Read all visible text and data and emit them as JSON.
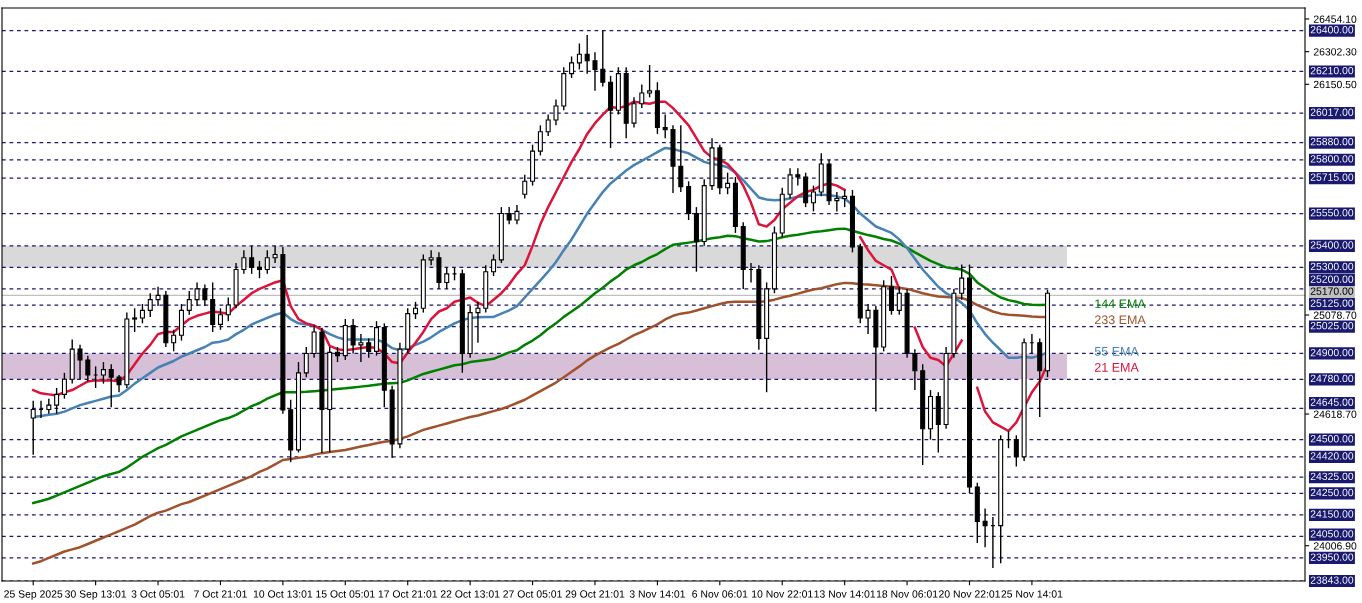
{
  "chart_data": {
    "type": "candlestick",
    "categories": [
      "25 Sep 2025",
      null,
      null,
      null,
      null,
      null,
      null,
      null,
      "30 Sep 13:01",
      null,
      null,
      null,
      null,
      null,
      null,
      null,
      "3 Oct 05:01",
      null,
      null,
      null,
      null,
      null,
      null,
      null,
      "7 Oct 21:01",
      null,
      null,
      null,
      null,
      null,
      null,
      null,
      "10 Oct 13:01",
      null,
      null,
      null,
      null,
      null,
      null,
      null,
      "15 Oct 05:01",
      null,
      null,
      null,
      null,
      null,
      null,
      null,
      "17 Oct 21:01",
      null,
      null,
      null,
      null,
      null,
      null,
      null,
      "22 Oct 13:01",
      null,
      null,
      null,
      null,
      null,
      null,
      null,
      "27 Oct 05:01",
      null,
      null,
      null,
      null,
      null,
      null,
      null,
      "29 Oct 21:01",
      null,
      null,
      null,
      null,
      null,
      null,
      null,
      "3 Nov 14:01",
      null,
      null,
      null,
      null,
      null,
      null,
      null,
      "6 Nov 06:01",
      null,
      null,
      null,
      null,
      null,
      null,
      null,
      "10 Nov 22:01",
      null,
      null,
      null,
      null,
      null,
      null,
      null,
      "13 Nov 14:01",
      null,
      null,
      null,
      null,
      null,
      null,
      null,
      "18 Nov 06:01",
      null,
      null,
      null,
      null,
      null,
      null,
      null,
      "20 Nov 22:01",
      null,
      null,
      null,
      null,
      null,
      null,
      null,
      "25 Nov 14:01",
      null,
      null
    ],
    "ylim": [
      23843,
      26505
    ],
    "yticks": [
      {
        "value": 26454.1,
        "label": "26454.10"
      },
      {
        "value": 26302.3,
        "label": "26302.30"
      },
      {
        "value": 26150.5,
        "label": "26150.50"
      },
      {
        "value": 25078.7,
        "label": "25078.70"
      },
      {
        "value": 24618.7,
        "label": "24618.70"
      },
      {
        "value": 24006.9,
        "label": "24006.90"
      }
    ],
    "grid": false,
    "bands": [
      {
        "axis": "y",
        "from": 25300,
        "to": 25400,
        "color": "#d9d9d9"
      },
      {
        "axis": "y",
        "from": 24780,
        "to": 24900,
        "color": "#d8bfd8"
      }
    ],
    "ref_lines": [
      {
        "axis": "y",
        "value": 26400,
        "label": "26400.00",
        "color": "#191970",
        "line_style": "dashed"
      },
      {
        "axis": "y",
        "value": 26210,
        "label": "26210.00",
        "color": "#191970",
        "line_style": "dashed"
      },
      {
        "axis": "y",
        "value": 26017,
        "label": "26017.00",
        "color": "#191970",
        "line_style": "dashed"
      },
      {
        "axis": "y",
        "value": 25880,
        "label": "25880.00",
        "color": "#191970",
        "line_style": "dashed"
      },
      {
        "axis": "y",
        "value": 25800,
        "label": "25800.00",
        "color": "#191970",
        "line_style": "dashed"
      },
      {
        "axis": "y",
        "value": 25715,
        "label": "25715.00",
        "color": "#191970",
        "line_style": "dashed"
      },
      {
        "axis": "y",
        "value": 25550,
        "label": "25550.00",
        "color": "#191970",
        "line_style": "dashed"
      },
      {
        "axis": "y",
        "value": 25400,
        "label": "25400.00",
        "color": "#191970",
        "line_style": "dashed"
      },
      {
        "axis": "y",
        "value": 25300,
        "label": "25300.00",
        "color": "#191970",
        "line_style": "dashed"
      },
      {
        "axis": "y",
        "value": 25200,
        "label": "25200.00",
        "color": "#191970",
        "line_style": "dashed"
      },
      {
        "axis": "y",
        "value": 25170,
        "label": "25170.00",
        "color": "#c0c0c0",
        "line_style": "solid"
      },
      {
        "axis": "y",
        "value": 25125,
        "label": "25125.00",
        "color": "#191970",
        "line_style": "dashed"
      },
      {
        "axis": "y",
        "value": 25025,
        "label": "25025.00",
        "color": "#191970",
        "line_style": "dashed"
      },
      {
        "axis": "y",
        "value": 24900,
        "label": "24900.00",
        "color": "#191970",
        "line_style": "dashed"
      },
      {
        "axis": "y",
        "value": 24780,
        "label": "24780.00",
        "color": "#191970",
        "line_style": "dashed"
      },
      {
        "axis": "y",
        "value": 24645,
        "label": "24645.00",
        "color": "#191970",
        "line_style": "dashed"
      },
      {
        "axis": "y",
        "value": 24500,
        "label": "24500.00",
        "color": "#191970",
        "line_style": "dashed"
      },
      {
        "axis": "y",
        "value": 24420,
        "label": "24420.00",
        "color": "#191970",
        "line_style": "dashed"
      },
      {
        "axis": "y",
        "value": 24325,
        "label": "24325.00",
        "color": "#191970",
        "line_style": "dashed"
      },
      {
        "axis": "y",
        "value": 24250,
        "label": "24250.00",
        "color": "#191970",
        "line_style": "dashed"
      },
      {
        "axis": "y",
        "value": 24150,
        "label": "24150.00",
        "color": "#191970",
        "line_style": "dashed"
      },
      {
        "axis": "y",
        "value": 24050,
        "label": "24050.00",
        "color": "#191970",
        "line_style": "dashed"
      },
      {
        "axis": "y",
        "value": 23950,
        "label": "23950.00",
        "color": "#191970",
        "line_style": "dashed"
      },
      {
        "axis": "y",
        "value": 23843,
        "label": "23843.00",
        "color": "#191970",
        "line_style": "dashed"
      }
    ],
    "ohlc": [
      [
        24600,
        24680,
        24430,
        24640
      ],
      [
        24640,
        24680,
        24600,
        24640
      ],
      [
        24640,
        24690,
        24620,
        24660
      ],
      [
        24660,
        24740,
        24620,
        24710
      ],
      [
        24710,
        24810,
        24690,
        24780
      ],
      [
        24780,
        24965,
        24760,
        24920
      ],
      [
        24920,
        24940,
        24780,
        24870
      ],
      [
        24870,
        24890,
        24770,
        24800
      ],
      [
        24800,
        24840,
        24740,
        24800
      ],
      [
        24800,
        24860,
        24760,
        24825
      ],
      [
        24825,
        24850,
        24650,
        24790
      ],
      [
        24790,
        24800,
        24720,
        24755
      ],
      [
        24755,
        25090,
        24740,
        25060
      ],
      [
        25060,
        25110,
        25000,
        25065
      ],
      [
        25065,
        25130,
        25040,
        25100
      ],
      [
        25100,
        25180,
        25070,
        25150
      ],
      [
        25150,
        25210,
        25120,
        25170
      ],
      [
        25170,
        25190,
        24930,
        24950
      ],
      [
        24950,
        25010,
        24910,
        24985
      ],
      [
        24985,
        25130,
        24960,
        25100
      ],
      [
        25100,
        25190,
        25080,
        25150
      ],
      [
        25150,
        25230,
        25120,
        25200
      ],
      [
        25200,
        25220,
        25120,
        25150
      ],
      [
        25150,
        25230,
        25000,
        25035
      ],
      [
        25035,
        25110,
        25010,
        25080
      ],
      [
        25080,
        25160,
        25050,
        25125
      ],
      [
        25125,
        25320,
        25110,
        25290
      ],
      [
        25290,
        25380,
        25270,
        25345
      ],
      [
        25345,
        25400,
        25270,
        25300
      ],
      [
        25300,
        25330,
        25250,
        25290
      ],
      [
        25290,
        25380,
        25270,
        25345
      ],
      [
        25345,
        25400,
        25320,
        25360
      ],
      [
        25360,
        25395,
        24620,
        24638
      ],
      [
        24638,
        24685,
        24395,
        24452
      ],
      [
        24452,
        24860,
        24440,
        24810
      ],
      [
        24810,
        24930,
        24790,
        24900
      ],
      [
        24900,
        25030,
        24880,
        25000
      ],
      [
        25000,
        25020,
        24438,
        24640
      ],
      [
        24640,
        24930,
        24440,
        24905
      ],
      [
        24905,
        24930,
        24860,
        24890
      ],
      [
        24890,
        25060,
        24870,
        25030
      ],
      [
        25030,
        25060,
        24900,
        24940
      ],
      [
        24940,
        24990,
        24860,
        24950
      ],
      [
        24950,
        24970,
        24880,
        24910
      ],
      [
        24910,
        25050,
        24890,
        25020
      ],
      [
        25020,
        25040,
        24650,
        24730
      ],
      [
        24730,
        24750,
        24415,
        24480
      ],
      [
        24480,
        24950,
        24460,
        24920
      ],
      [
        24920,
        25110,
        24900,
        25085
      ],
      [
        25085,
        25140,
        25060,
        25110
      ],
      [
        25110,
        25360,
        25090,
        25335
      ],
      [
        25335,
        25380,
        25310,
        25345
      ],
      [
        25345,
        25370,
        25200,
        25230
      ],
      [
        25230,
        25300,
        25200,
        25270
      ],
      [
        25270,
        25300,
        25240,
        25270
      ],
      [
        25270,
        25290,
        24810,
        24900
      ],
      [
        24900,
        25120,
        24880,
        25090
      ],
      [
        25090,
        25140,
        24950,
        25110
      ],
      [
        25110,
        25310,
        25090,
        25280
      ],
      [
        25280,
        25360,
        25260,
        25335
      ],
      [
        25335,
        25580,
        25320,
        25550
      ],
      [
        25550,
        25580,
        25500,
        25520
      ],
      [
        25520,
        25590,
        25500,
        25560
      ],
      [
        25640,
        25730,
        25620,
        25700
      ],
      [
        25700,
        25870,
        25680,
        25840
      ],
      [
        25840,
        25960,
        25820,
        25930
      ],
      [
        25930,
        26010,
        25910,
        25985
      ],
      [
        25985,
        26080,
        25960,
        26050
      ],
      [
        26050,
        26230,
        26030,
        26200
      ],
      [
        26200,
        26280,
        26180,
        26250
      ],
      [
        26250,
        26340,
        26220,
        26290
      ],
      [
        26290,
        26380,
        26200,
        26260
      ],
      [
        26260,
        26300,
        26120,
        26220
      ],
      [
        26220,
        26400,
        26140,
        26160
      ],
      [
        26160,
        26190,
        25855,
        26030
      ],
      [
        26030,
        26230,
        26010,
        26200
      ],
      [
        26200,
        26230,
        25900,
        25970
      ],
      [
        25970,
        26090,
        25950,
        26060
      ],
      [
        26060,
        26150,
        26040,
        26110
      ],
      [
        26110,
        26240,
        26090,
        26120
      ],
      [
        26120,
        26160,
        25920,
        25950
      ],
      [
        25950,
        26010,
        25900,
        25940
      ],
      [
        25940,
        25960,
        25645,
        25770
      ],
      [
        25770,
        25960,
        25650,
        25675
      ],
      [
        25675,
        25700,
        25520,
        25550
      ],
      [
        25550,
        25580,
        25280,
        25420
      ],
      [
        25420,
        25710,
        25400,
        25680
      ],
      [
        25680,
        25900,
        25660,
        25855
      ],
      [
        25855,
        25870,
        25640,
        25670
      ],
      [
        25670,
        25740,
        25640,
        25690
      ],
      [
        25690,
        25720,
        25460,
        25490
      ],
      [
        25490,
        25510,
        25200,
        25290
      ],
      [
        25290,
        25320,
        25230,
        25290
      ],
      [
        25290,
        25310,
        24917,
        24970
      ],
      [
        24970,
        25230,
        24720,
        25200
      ],
      [
        25200,
        25490,
        25180,
        25460
      ],
      [
        25460,
        25670,
        25440,
        25640
      ],
      [
        25640,
        25760,
        25620,
        25730
      ],
      [
        25730,
        25760,
        25680,
        25720
      ],
      [
        25720,
        25740,
        25580,
        25600
      ],
      [
        25600,
        25680,
        25560,
        25650
      ],
      [
        25650,
        25830,
        25630,
        25780
      ],
      [
        25780,
        25800,
        25590,
        25610
      ],
      [
        25610,
        25650,
        25560,
        25620
      ],
      [
        25620,
        25660,
        25580,
        25630
      ],
      [
        25630,
        25660,
        25370,
        25395
      ],
      [
        25395,
        25410,
        25040,
        25065
      ],
      [
        25065,
        25130,
        24990,
        25100
      ],
      [
        25100,
        25120,
        24630,
        24930
      ],
      [
        24930,
        25240,
        24910,
        25210
      ],
      [
        25210,
        25260,
        25080,
        25100
      ],
      [
        25100,
        25210,
        25080,
        25180
      ],
      [
        25180,
        25200,
        24880,
        24900
      ],
      [
        24900,
        24920,
        24730,
        24820
      ],
      [
        24820,
        24850,
        24382,
        24550
      ],
      [
        24550,
        24730,
        24500,
        24700
      ],
      [
        24700,
        24720,
        24440,
        24570
      ],
      [
        24570,
        24930,
        24550,
        24900
      ],
      [
        24900,
        25200,
        24880,
        25180
      ],
      [
        25180,
        25313,
        25150,
        25250
      ],
      [
        25250,
        25313,
        24250,
        24280
      ],
      [
        24280,
        24300,
        24020,
        24120
      ],
      [
        24120,
        24180,
        24000,
        24100
      ],
      [
        24100,
        24140,
        23903,
        24100
      ],
      [
        24100,
        24520,
        23925,
        24500
      ],
      [
        24500,
        24540,
        24460,
        24500
      ],
      [
        24500,
        24520,
        24375,
        24420
      ],
      [
        24420,
        24970,
        24400,
        24950
      ],
      [
        24950,
        24990,
        24900,
        24950
      ],
      [
        24950,
        24970,
        24605,
        24820
      ],
      [
        24820,
        25195,
        24790,
        25180
      ]
    ],
    "color": "#000000",
    "series": [
      {
        "type": "line",
        "name": "144 EMA",
        "color": "#008000",
        "values": [
          24205,
          24215,
          24225,
          24240,
          24255,
          24270,
          24285,
          24300,
          24315,
          24330,
          24340,
          24350,
          24370,
          24395,
          24420,
          24440,
          24460,
          24475,
          24495,
          24515,
          24530,
          24545,
          24560,
          24575,
          24590,
          24600,
          24615,
          24635,
          24655,
          24670,
          24690,
          24705,
          24720,
          24720,
          24720,
          24722,
          24725,
          24728,
          24732,
          24735,
          24738,
          24742,
          24746,
          24750,
          24755,
          24760,
          24762,
          24764,
          24775,
          24790,
          24805,
          24815,
          24825,
          24835,
          24845,
          24850,
          24860,
          24865,
          24870,
          24875,
          24890,
          24905,
          24915,
          24940,
          24960,
          24985,
          25015,
          25040,
          25070,
          25095,
          25120,
          25150,
          25180,
          25205,
          25235,
          25260,
          25290,
          25310,
          25325,
          25345,
          25362,
          25385,
          25405,
          25410,
          25415,
          25420,
          25428,
          25435,
          25440,
          25447,
          25445,
          25435,
          25428,
          25420,
          25422,
          25430,
          25440,
          25447,
          25452,
          25458,
          25464,
          25468,
          25473,
          25478,
          25480,
          25470,
          25460,
          25450,
          25442,
          25432,
          25425,
          25410,
          25392,
          25370,
          25350,
          25330,
          25315,
          25300,
          25295,
          25290,
          25270,
          25230,
          25205,
          25180,
          25160,
          25148,
          25140,
          25130,
          25126,
          25125,
          25126
        ]
      },
      {
        "type": "line",
        "name": "233 EMA",
        "color": "#a0522d",
        "values": [
          23925,
          23935,
          23950,
          23965,
          23980,
          23990,
          24000,
          24015,
          24030,
          24045,
          24060,
          24075,
          24090,
          24105,
          24125,
          24145,
          24160,
          24170,
          24185,
          24200,
          24210,
          24225,
          24240,
          24255,
          24270,
          24285,
          24300,
          24315,
          24330,
          24350,
          24365,
          24385,
          24405,
          24410,
          24415,
          24420,
          24430,
          24437,
          24442,
          24447,
          24452,
          24460,
          24468,
          24475,
          24483,
          24490,
          24495,
          24503,
          24515,
          24530,
          24545,
          24555,
          24565,
          24575,
          24585,
          24595,
          24605,
          24612,
          24622,
          24632,
          24642,
          24655,
          24670,
          24685,
          24705,
          24725,
          24745,
          24765,
          24790,
          24815,
          24840,
          24868,
          24890,
          24910,
          24928,
          24945,
          24965,
          24985,
          25000,
          25018,
          25035,
          25058,
          25075,
          25085,
          25090,
          25100,
          25110,
          25120,
          25130,
          25138,
          25140,
          25140,
          25140,
          25140,
          25143,
          25150,
          25160,
          25168,
          25178,
          25188,
          25197,
          25203,
          25212,
          25222,
          25228,
          25226,
          25222,
          25220,
          25217,
          25214,
          25210,
          25206,
          25200,
          25190,
          25180,
          25172,
          25165,
          25162,
          25160,
          25158,
          25145,
          25125,
          25110,
          25095,
          25085,
          25080,
          25078,
          25075,
          25072,
          25070,
          25070
        ]
      },
      {
        "type": "line",
        "name": "55 EMA",
        "color": "#4682b4",
        "values": [
          24605,
          24610,
          24615,
          24620,
          24630,
          24645,
          24660,
          24670,
          24680,
          24690,
          24700,
          24705,
          24730,
          24760,
          24785,
          24810,
          24835,
          24850,
          24865,
          24885,
          24900,
          24915,
          24930,
          24950,
          24955,
          24965,
          24990,
          25010,
          25035,
          25050,
          25065,
          25080,
          25090,
          25060,
          25040,
          25035,
          25030,
          25010,
          24990,
          24975,
          24965,
          24965,
          24965,
          24965,
          24965,
          24950,
          24925,
          24915,
          24925,
          24940,
          24955,
          24975,
          25000,
          25020,
          25040,
          25055,
          25065,
          25068,
          25070,
          25070,
          25085,
          25100,
          25120,
          25160,
          25200,
          25240,
          25280,
          25325,
          25380,
          25430,
          25490,
          25550,
          25600,
          25650,
          25690,
          25720,
          25750,
          25775,
          25795,
          25815,
          25835,
          25855,
          25850,
          25840,
          25830,
          25810,
          25790,
          25780,
          25775,
          25765,
          25740,
          25705,
          25665,
          25625,
          25615,
          25612,
          25614,
          25620,
          25628,
          25630,
          25635,
          25638,
          25635,
          25630,
          25620,
          25590,
          25550,
          25520,
          25490,
          25475,
          25460,
          25430,
          25390,
          25340,
          25290,
          25250,
          25210,
          25180,
          25160,
          25135,
          25100,
          25040,
          24990,
          24950,
          24915,
          24880,
          24880,
          24885,
          24880,
          24890,
          24905
        ]
      },
      {
        "type": "line",
        "name": "21 EMA",
        "color": "#dc143c",
        "values": [
          24730,
          24715,
          24710,
          24705,
          24720,
          24730,
          24750,
          24770,
          24775,
          24775,
          24775,
          24770,
          24800,
          24850,
          24900,
          24940,
          24990,
          25000,
          25000,
          25030,
          25060,
          25075,
          25085,
          25095,
          25090,
          25085,
          25120,
          25150,
          25180,
          25200,
          25215,
          25230,
          25240,
          25120,
          25060,
          25040,
          25030,
          25010,
          24935,
          24920,
          24915,
          24920,
          24925,
          24930,
          24925,
          24900,
          24860,
          24855,
          24905,
          24950,
          25000,
          25060,
          25095,
          25110,
          25140,
          25150,
          25160,
          25135,
          25120,
          25150,
          25180,
          25220,
          25270,
          25310,
          25400,
          25500,
          25580,
          25650,
          25720,
          25790,
          25850,
          25920,
          25970,
          26010,
          26045,
          26040,
          26050,
          26070,
          26065,
          26060,
          26070,
          26070,
          26040,
          26000,
          25960,
          25900,
          25840,
          25810,
          25800,
          25780,
          25740,
          25680,
          25600,
          25500,
          25490,
          25520,
          25570,
          25600,
          25630,
          25650,
          25660,
          25680,
          25690,
          25680,
          25660,
          null,
          25440,
          25380,
          25330,
          25310,
          25290,
          25200,
          null,
          25020,
          24930,
          24880,
          24870,
          24840,
          24900,
          24960,
          null,
          24740,
          24630,
          24580,
          24560,
          24540,
          24580,
          24650,
          24720,
          24770,
          24850
        ]
      }
    ]
  }
}
